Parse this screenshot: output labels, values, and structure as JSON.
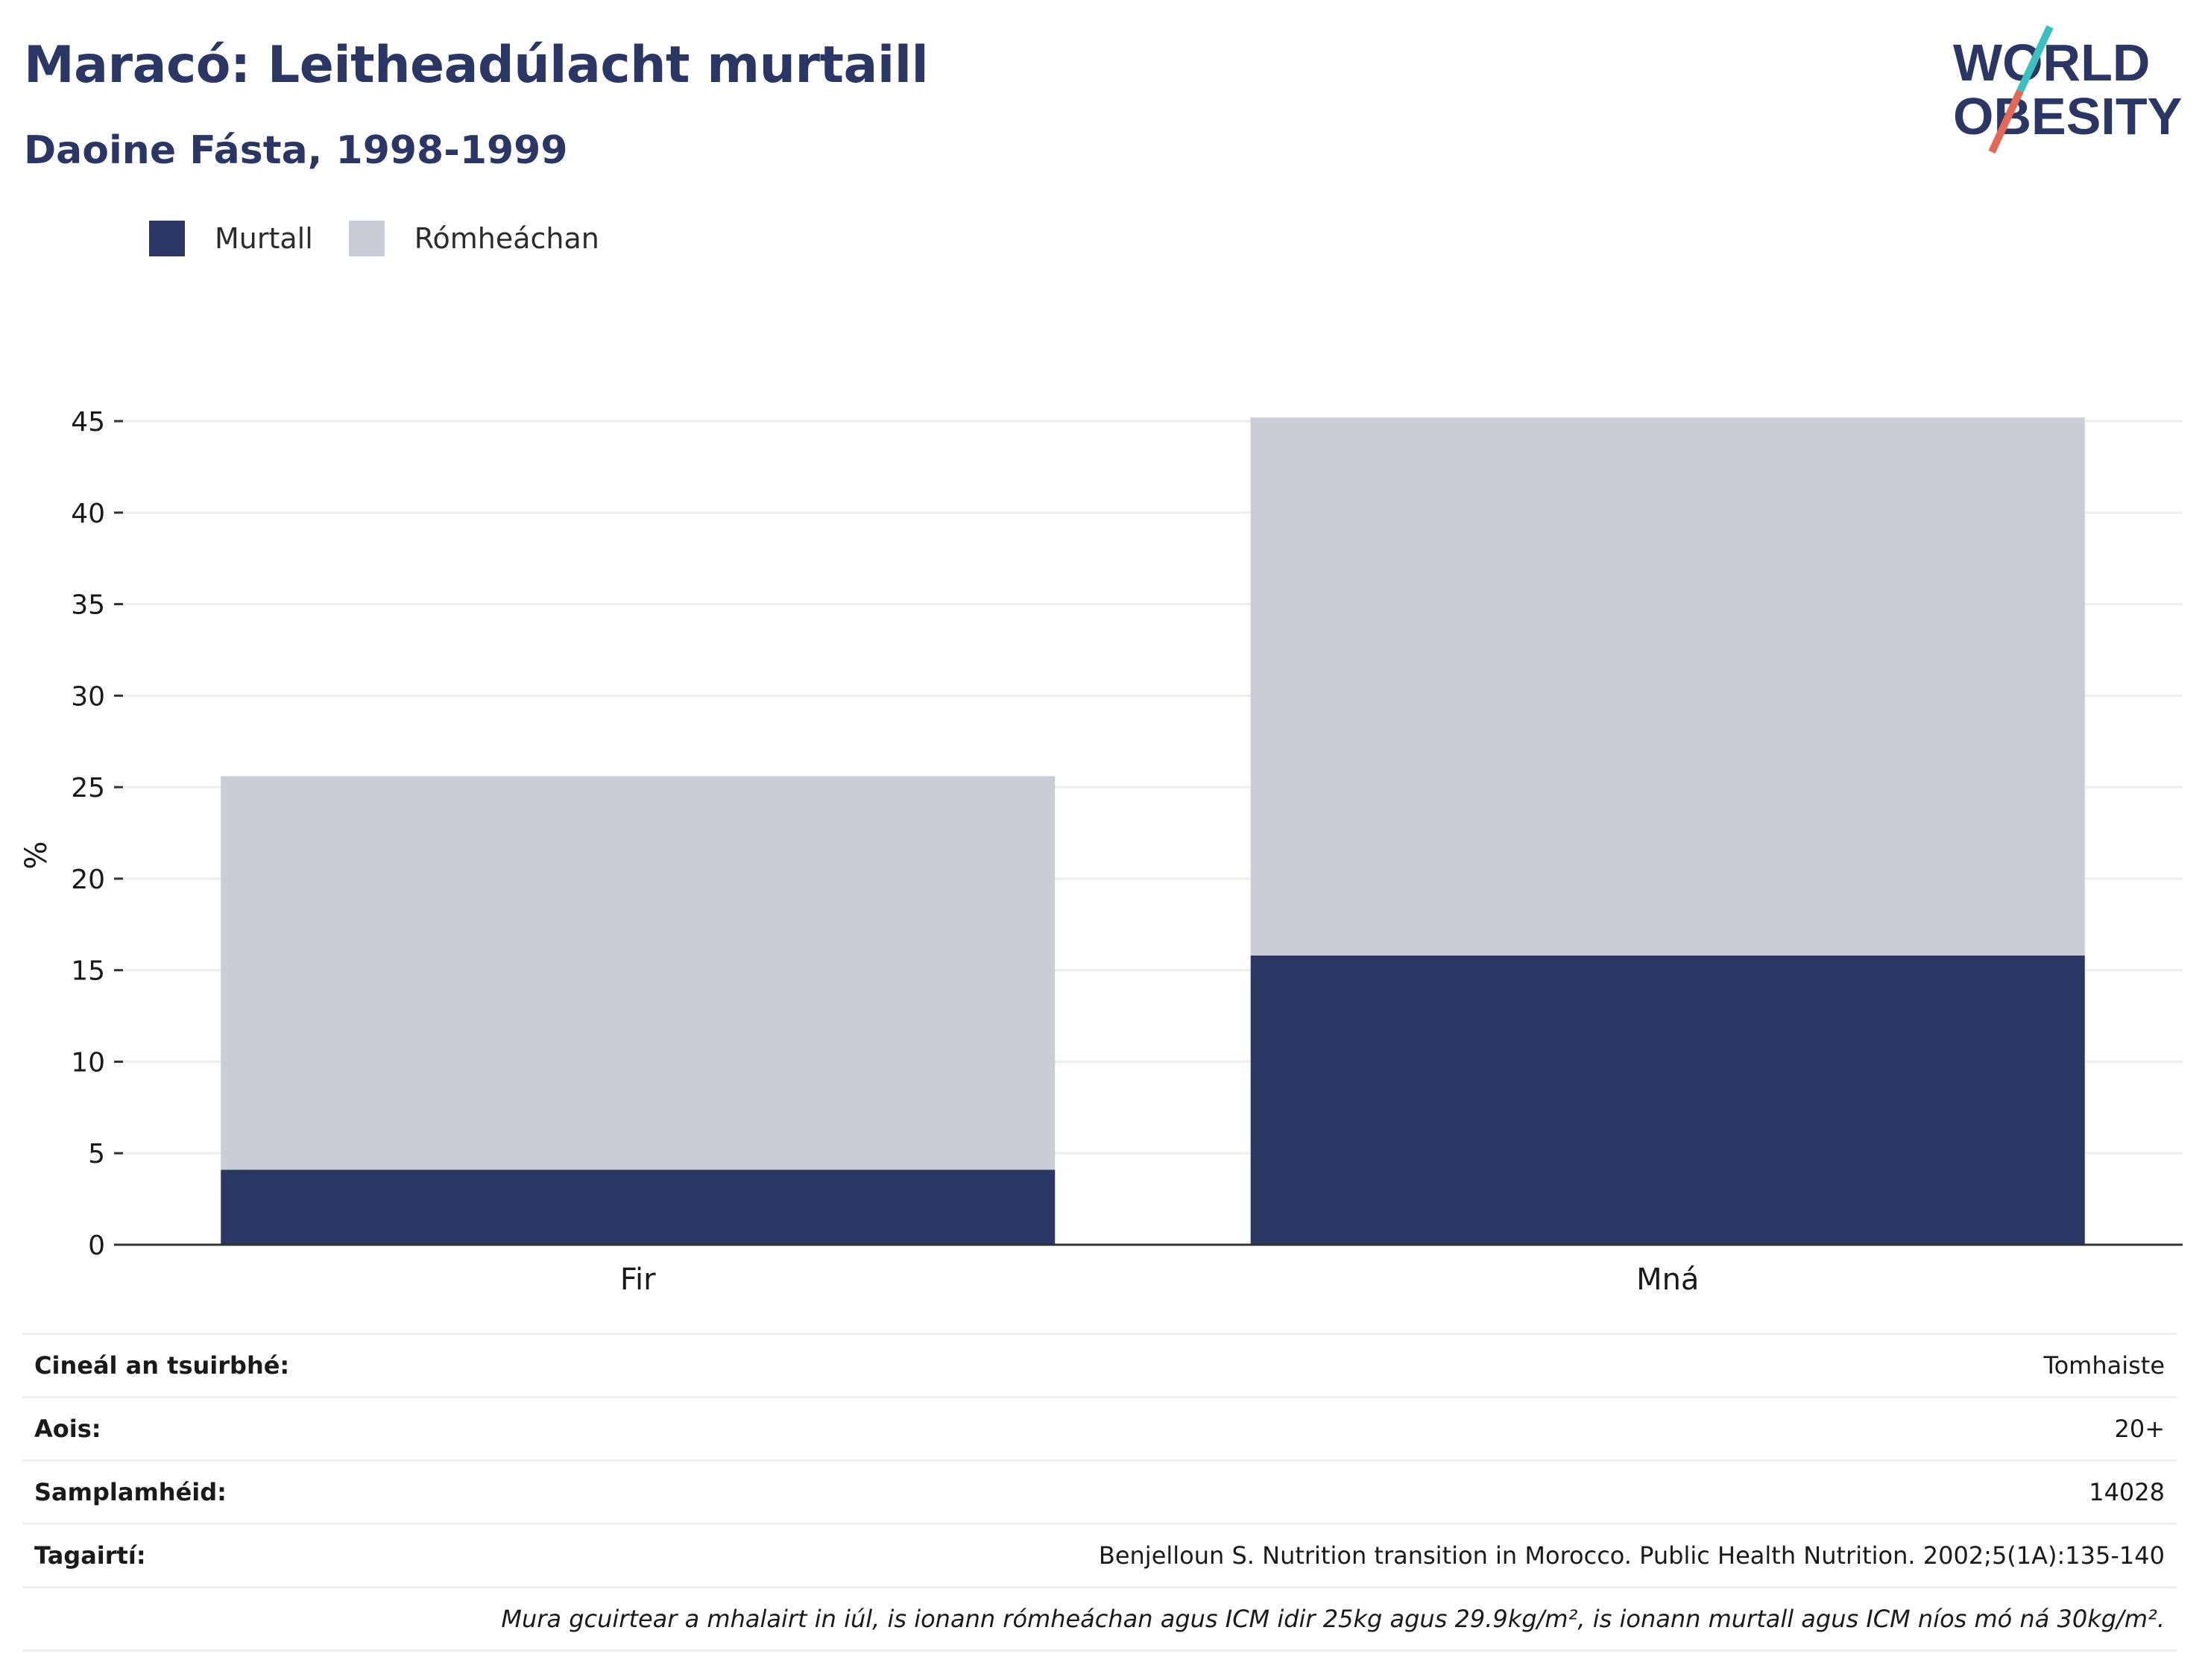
{
  "title": "Maracó: Leitheadúlacht murtaill",
  "subtitle": "Daoine Fásta, 1998-1999",
  "logo": {
    "line1": "WORLD",
    "line2": "OBESITY"
  },
  "colors": {
    "obese": "#2a3663",
    "overweight": "#caccd7",
    "text": "#2a3663",
    "accent_teal": "#3bbfbf",
    "accent_red": "#e4685a"
  },
  "chart_data": {
    "type": "bar",
    "stacked": true,
    "categories": [
      "Fir",
      "Mná"
    ],
    "series": [
      {
        "name": "Murtall",
        "values": [
          4.1,
          15.8
        ]
      },
      {
        "name": "Rómheáchan",
        "values": [
          21.5,
          29.4
        ]
      }
    ],
    "ylabel": "%",
    "ylim": [
      0,
      45
    ],
    "yticks": [
      0,
      5,
      10,
      15,
      20,
      25,
      30,
      35,
      40,
      45
    ],
    "grid": true,
    "legend": "top-left"
  },
  "info": {
    "rows": [
      {
        "label": "Cineál an tsuirbhé:",
        "value": "Tomhaiste"
      },
      {
        "label": "Aois:",
        "value": "20+"
      },
      {
        "label": "Samplamhéid:",
        "value": "14028"
      },
      {
        "label": "Tagairtí:",
        "value": "Benjelloun S. Nutrition transition in Morocco. Public Health Nutrition. 2002;5(1A):135-140"
      }
    ],
    "note": "Mura gcuirtear a mhalairt in iúl, is ionann rómheáchan agus ICM idir 25kg agus 29.9kg/m², is ionann murtall agus ICM níos mó ná 30kg/m²."
  }
}
